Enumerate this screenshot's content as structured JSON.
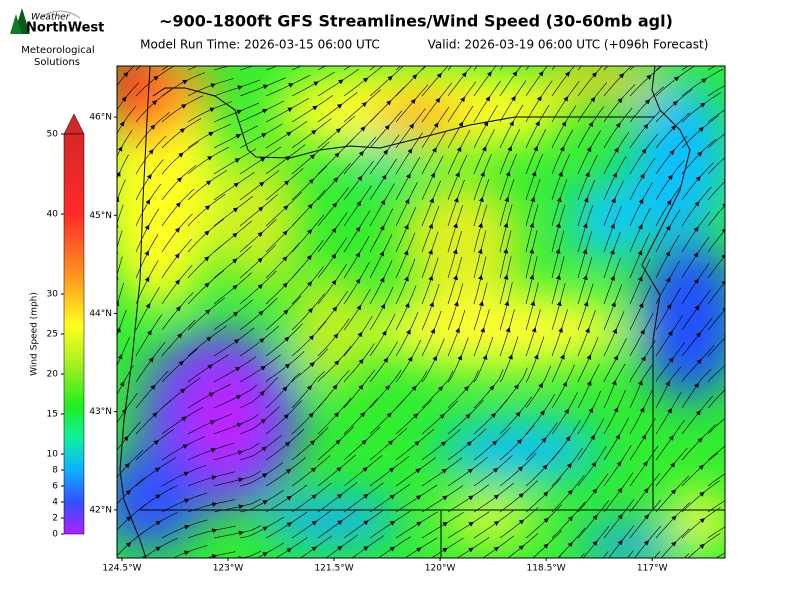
{
  "header": {
    "title": "~900-1800ft GFS Streamlines/Wind Speed (30-60mb agl)",
    "run_time": "Model Run Time: 2026-03-15 06:00 UTC",
    "valid_time": "Valid: 2026-03-19 06:00 UTC  (+096h Forecast)"
  },
  "logo": {
    "top": "Weather",
    "name": "NorthWest",
    "caption_1": "Meteorological",
    "caption_2": "Solutions"
  },
  "map": {
    "lonlim": [
      -124.57,
      -115.97
    ],
    "latlim": [
      41.51,
      46.52
    ],
    "lon_ticks": [
      {
        "value": -124.5,
        "label": "124.5°W"
      },
      {
        "value": -123,
        "label": "123°W"
      },
      {
        "value": -121.5,
        "label": "121.5°W"
      },
      {
        "value": -120,
        "label": "120°W"
      },
      {
        "value": -118.5,
        "label": "118.5°W"
      },
      {
        "value": -117,
        "label": "117°W"
      }
    ],
    "lat_ticks": [
      {
        "value": 46,
        "label": "46°N"
      },
      {
        "value": 45,
        "label": "45°N"
      },
      {
        "value": 44,
        "label": "44°N"
      },
      {
        "value": 43,
        "label": "43°N"
      },
      {
        "value": 42,
        "label": "42°N"
      }
    ]
  },
  "colorbar": {
    "label": "Wind Speed (mph)",
    "lim": [
      0,
      50
    ],
    "ticks": [
      0,
      2,
      4,
      6,
      8,
      10,
      15,
      20,
      25,
      30,
      40,
      50
    ]
  }
}
